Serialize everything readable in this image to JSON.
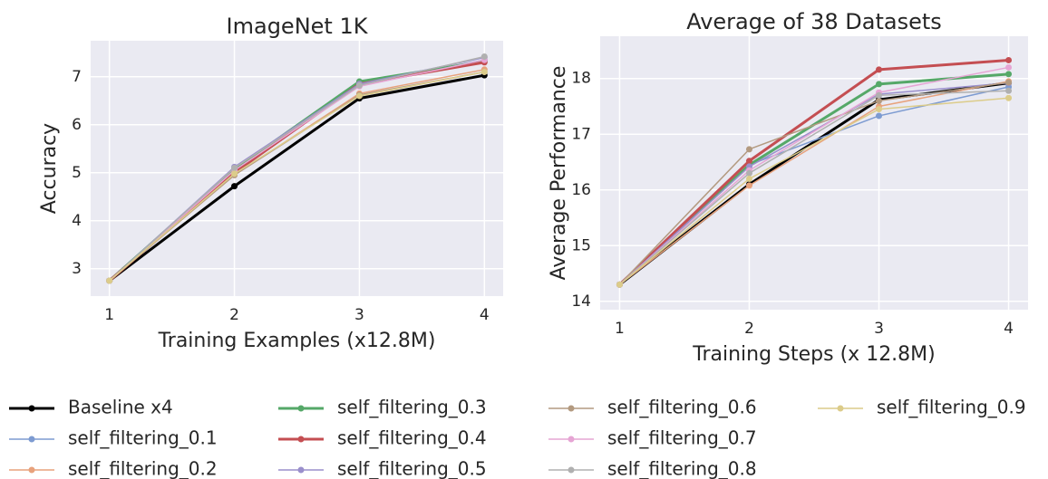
{
  "chart_data": [
    {
      "type": "line",
      "title": "ImageNet 1K",
      "xlabel": "Training Examples (x12.8M)",
      "ylabel": "Accuracy",
      "x": [
        1,
        2,
        3,
        4
      ],
      "xlim": [
        0.85,
        4.15
      ],
      "xticks": [
        1,
        2,
        3,
        4
      ],
      "ylim": [
        2.43,
        7.75
      ],
      "yticks": [
        3,
        4,
        5,
        6,
        7
      ],
      "grid": true,
      "series": [
        {
          "name": "Baseline x4",
          "color": "#000000",
          "linewidth": 3,
          "values": [
            2.75,
            4.72,
            6.55,
            7.03
          ]
        },
        {
          "name": "self_filtering_0.1",
          "color": "#7d9bd1",
          "linewidth": 1.5,
          "values": [
            2.75,
            5.05,
            6.85,
            7.35
          ]
        },
        {
          "name": "self_filtering_0.2",
          "color": "#e8a27c",
          "linewidth": 1.5,
          "values": [
            2.75,
            4.95,
            6.65,
            7.15
          ]
        },
        {
          "name": "self_filtering_0.3",
          "color": "#55a868",
          "linewidth": 3,
          "values": [
            2.75,
            5.07,
            6.9,
            7.32
          ]
        },
        {
          "name": "self_filtering_0.4",
          "color": "#c44e52",
          "linewidth": 3,
          "values": [
            2.75,
            5.0,
            6.85,
            7.3
          ]
        },
        {
          "name": "self_filtering_0.5",
          "color": "#9a8fcc",
          "linewidth": 1.5,
          "values": [
            2.75,
            5.12,
            6.85,
            7.4
          ]
        },
        {
          "name": "self_filtering_0.6",
          "color": "#b39a80",
          "linewidth": 1.5,
          "values": [
            2.75,
            4.95,
            6.62,
            7.1
          ]
        },
        {
          "name": "self_filtering_0.7",
          "color": "#e6a5d4",
          "linewidth": 1.5,
          "values": [
            2.75,
            5.05,
            6.8,
            7.35
          ]
        },
        {
          "name": "self_filtering_0.8",
          "color": "#b0b0b0",
          "linewidth": 1.5,
          "values": [
            2.75,
            5.1,
            6.82,
            7.42
          ]
        },
        {
          "name": "self_filtering_0.9",
          "color": "#dccc8a",
          "linewidth": 1.5,
          "values": [
            2.75,
            4.98,
            6.6,
            7.1
          ]
        }
      ]
    },
    {
      "type": "line",
      "title": "Average of 38 Datasets",
      "xlabel": "Training Steps (x 12.8M)",
      "ylabel": "Average Performance",
      "x": [
        1,
        2,
        3,
        4
      ],
      "xlim": [
        0.85,
        4.15
      ],
      "xticks": [
        1,
        2,
        3,
        4
      ],
      "ylim": [
        13.85,
        18.76
      ],
      "yticks": [
        14,
        15,
        16,
        17,
        18
      ],
      "grid": true,
      "series": [
        {
          "color": "#000000",
          "linewidth": 3,
          "values": [
            14.3,
            16.1,
            17.62,
            17.92
          ]
        },
        {
          "color": "#7d9bd1",
          "linewidth": 1.5,
          "values": [
            14.3,
            16.45,
            17.33,
            17.85
          ]
        },
        {
          "color": "#e8a27c",
          "linewidth": 1.5,
          "values": [
            14.3,
            16.08,
            17.5,
            17.95
          ]
        },
        {
          "color": "#55a868",
          "linewidth": 3,
          "values": [
            14.3,
            16.45,
            17.9,
            18.08
          ]
        },
        {
          "color": "#c44e52",
          "linewidth": 3,
          "values": [
            14.3,
            16.52,
            18.16,
            18.33
          ]
        },
        {
          "color": "#9a8fcc",
          "linewidth": 1.5,
          "values": [
            14.3,
            16.42,
            17.72,
            17.92
          ]
        },
        {
          "color": "#b39a80",
          "linewidth": 1.5,
          "values": [
            14.3,
            16.73,
            17.6,
            17.93
          ]
        },
        {
          "color": "#e6a5d4",
          "linewidth": 1.5,
          "values": [
            14.3,
            16.35,
            17.75,
            18.2
          ]
        },
        {
          "color": "#b0b0b0",
          "linewidth": 1.5,
          "values": [
            14.3,
            16.3,
            17.7,
            17.78
          ]
        },
        {
          "color": "#dccc8a",
          "linewidth": 1.5,
          "values": [
            14.3,
            16.2,
            17.45,
            17.65
          ]
        }
      ]
    }
  ]
}
